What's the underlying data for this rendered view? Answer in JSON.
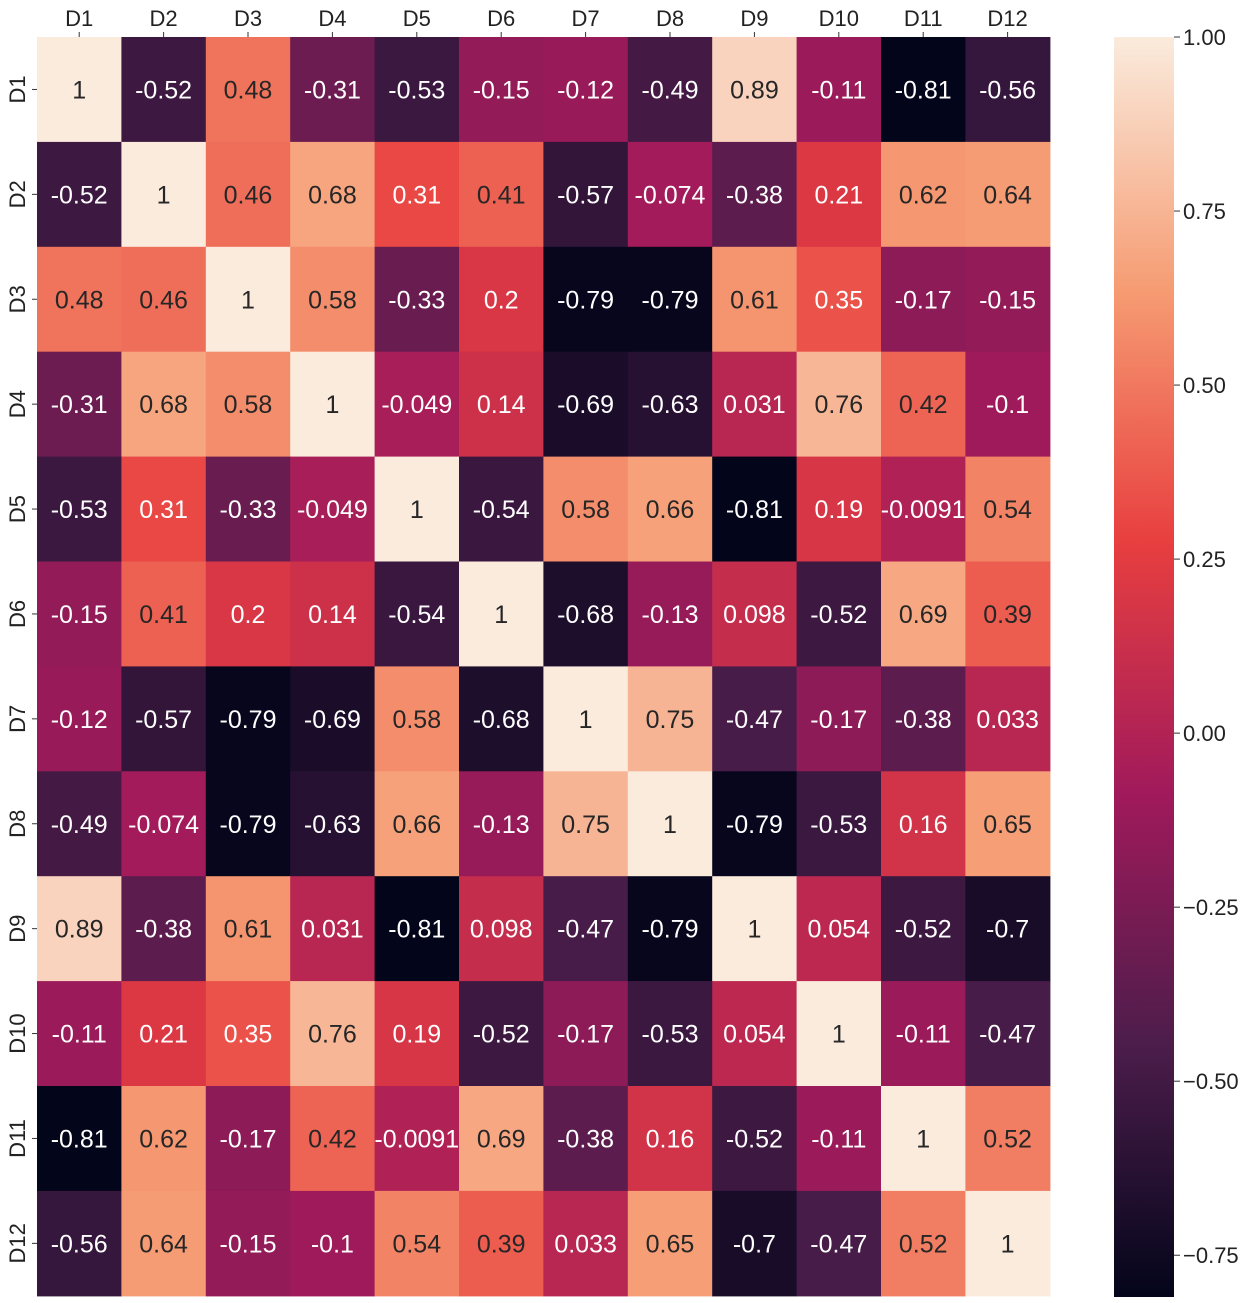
{
  "chart_data": {
    "type": "heatmap",
    "title": "",
    "xlabel": "",
    "ylabel": "",
    "rows": [
      "D1",
      "D2",
      "D3",
      "D4",
      "D5",
      "D6",
      "D7",
      "D8",
      "D9",
      "D10",
      "D11",
      "D12"
    ],
    "cols": [
      "D1",
      "D2",
      "D3",
      "D4",
      "D5",
      "D6",
      "D7",
      "D8",
      "D9",
      "D10",
      "D11",
      "D12"
    ],
    "values": [
      [
        1,
        -0.52,
        0.48,
        -0.31,
        -0.53,
        -0.15,
        -0.12,
        -0.49,
        0.89,
        -0.11,
        -0.81,
        -0.56
      ],
      [
        -0.52,
        1,
        0.46,
        0.68,
        0.31,
        0.41,
        -0.57,
        -0.074,
        -0.38,
        0.21,
        0.62,
        0.64
      ],
      [
        0.48,
        0.46,
        1,
        0.58,
        -0.33,
        0.2,
        -0.79,
        -0.79,
        0.61,
        0.35,
        -0.17,
        -0.15
      ],
      [
        -0.31,
        0.68,
        0.58,
        1,
        -0.049,
        0.14,
        -0.69,
        -0.63,
        0.031,
        0.76,
        0.42,
        -0.1
      ],
      [
        -0.53,
        0.31,
        -0.33,
        -0.049,
        1,
        -0.54,
        0.58,
        0.66,
        -0.81,
        0.19,
        -0.0091,
        0.54
      ],
      [
        -0.15,
        0.41,
        0.2,
        0.14,
        -0.54,
        1,
        -0.68,
        -0.13,
        0.098,
        -0.52,
        0.69,
        0.39
      ],
      [
        -0.12,
        -0.57,
        -0.79,
        -0.69,
        0.58,
        -0.68,
        1,
        0.75,
        -0.47,
        -0.17,
        -0.38,
        0.033
      ],
      [
        -0.49,
        -0.074,
        -0.79,
        -0.63,
        0.66,
        -0.13,
        0.75,
        1,
        -0.79,
        -0.53,
        0.16,
        0.65
      ],
      [
        0.89,
        -0.38,
        0.61,
        0.031,
        -0.81,
        0.098,
        -0.47,
        -0.79,
        1,
        0.054,
        -0.52,
        -0.7
      ],
      [
        -0.11,
        0.21,
        0.35,
        0.76,
        0.19,
        -0.52,
        -0.17,
        -0.53,
        0.054,
        1,
        -0.11,
        -0.47
      ],
      [
        -0.81,
        0.62,
        -0.17,
        0.42,
        -0.0091,
        0.69,
        -0.38,
        0.16,
        -0.52,
        -0.11,
        1,
        0.52
      ],
      [
        -0.56,
        0.64,
        -0.15,
        -0.1,
        0.54,
        0.39,
        0.033,
        0.65,
        -0.7,
        -0.47,
        0.52,
        1
      ]
    ],
    "labels": [
      [
        "1",
        "-0.52",
        "0.48",
        "-0.31",
        "-0.53",
        "-0.15",
        "-0.12",
        "-0.49",
        "0.89",
        "-0.11",
        "-0.81",
        "-0.56"
      ],
      [
        "-0.52",
        "1",
        "0.46",
        "0.68",
        "0.31",
        "0.41",
        "-0.57",
        "-0.074",
        "-0.38",
        "0.21",
        "0.62",
        "0.64"
      ],
      [
        "0.48",
        "0.46",
        "1",
        "0.58",
        "-0.33",
        "0.2",
        "-0.79",
        "-0.79",
        "0.61",
        "0.35",
        "-0.17",
        "-0.15"
      ],
      [
        "-0.31",
        "0.68",
        "0.58",
        "1",
        "-0.049",
        "0.14",
        "-0.69",
        "-0.63",
        "0.031",
        "0.76",
        "0.42",
        "-0.1"
      ],
      [
        "-0.53",
        "0.31",
        "-0.33",
        "-0.049",
        "1",
        "-0.54",
        "0.58",
        "0.66",
        "-0.81",
        "0.19",
        "-0.0091",
        "0.54"
      ],
      [
        "-0.15",
        "0.41",
        "0.2",
        "0.14",
        "-0.54",
        "1",
        "-0.68",
        "-0.13",
        "0.098",
        "-0.52",
        "0.69",
        "0.39"
      ],
      [
        "-0.12",
        "-0.57",
        "-0.79",
        "-0.69",
        "0.58",
        "-0.68",
        "1",
        "0.75",
        "-0.47",
        "-0.17",
        "-0.38",
        "0.033"
      ],
      [
        "-0.49",
        "-0.074",
        "-0.79",
        "-0.63",
        "0.66",
        "-0.13",
        "0.75",
        "1",
        "-0.79",
        "-0.53",
        "0.16",
        "0.65"
      ],
      [
        "0.89",
        "-0.38",
        "0.61",
        "0.031",
        "-0.81",
        "0.098",
        "-0.47",
        "-0.79",
        "1",
        "0.054",
        "-0.52",
        "-0.7"
      ],
      [
        "-0.11",
        "0.21",
        "0.35",
        "0.76",
        "0.19",
        "-0.52",
        "-0.17",
        "-0.53",
        "0.054",
        "1",
        "-0.11",
        "-0.47"
      ],
      [
        "-0.81",
        "0.62",
        "-0.17",
        "0.42",
        "-0.0091",
        "0.69",
        "-0.38",
        "0.16",
        "-0.52",
        "-0.11",
        "1",
        "0.52"
      ],
      [
        "-0.56",
        "0.64",
        "-0.15",
        "-0.1",
        "0.54",
        "0.39",
        "0.033",
        "0.65",
        "-0.7",
        "-0.47",
        "0.52",
        "1"
      ]
    ],
    "colorbar": {
      "range": [
        -0.81,
        1.0
      ],
      "ticks": [
        1.0,
        0.75,
        0.5,
        0.25,
        0.0,
        -0.25,
        -0.5,
        -0.75
      ],
      "tick_labels": [
        "1.00",
        "0.75",
        "0.50",
        "0.25",
        "0.00",
        "−0.25",
        "−0.50",
        "−0.75"
      ],
      "colormap": "rocket",
      "stops": [
        "#03051a",
        "#4c1d4b",
        "#a11a5b",
        "#e83f3f",
        "#f69c73",
        "#faebdd"
      ],
      "position": "right"
    },
    "x_tick_position": "top",
    "y_tick_rotation": "vertical"
  }
}
